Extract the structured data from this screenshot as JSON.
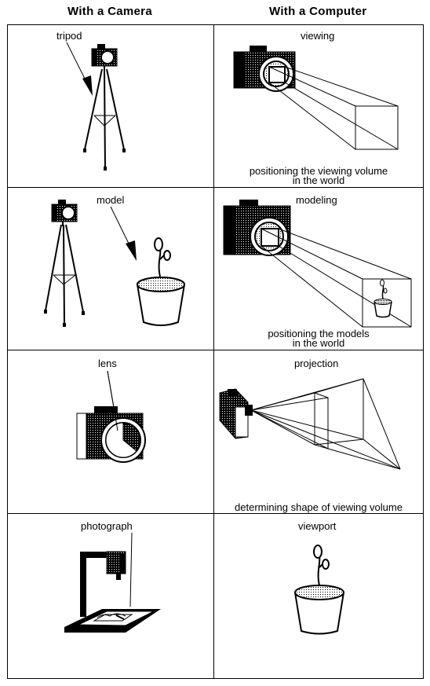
{
  "headers": {
    "camera": "With a Camera",
    "computer": "With a Computer"
  },
  "rows": [
    {
      "camera_label": "tripod",
      "computer_label": "viewing",
      "computer_caption_line1": "positioning the viewing volume",
      "computer_caption_line2": "in the world"
    },
    {
      "camera_label": "model",
      "computer_label": "modeling",
      "computer_caption_line1": "positioning the models",
      "computer_caption_line2": "in the world"
    },
    {
      "camera_label": "lens",
      "computer_label": "projection",
      "computer_caption_line1": "determining shape of viewing volume"
    },
    {
      "camera_label": "photograph",
      "computer_label": "viewport"
    }
  ]
}
